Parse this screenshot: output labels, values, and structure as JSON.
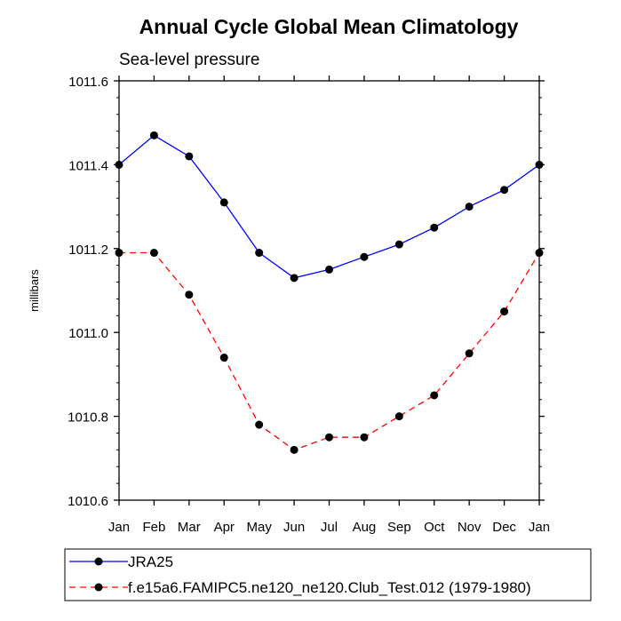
{
  "chart_data": {
    "type": "line",
    "title": "Annual Cycle Global Mean Climatology",
    "subtitle": "Sea-level pressure",
    "xlabel": "",
    "ylabel": "millibars",
    "categories": [
      "Jan",
      "Feb",
      "Mar",
      "Apr",
      "May",
      "Jun",
      "Jul",
      "Aug",
      "Sep",
      "Oct",
      "Nov",
      "Dec",
      "Jan"
    ],
    "ylim": [
      1010.6,
      1011.6
    ],
    "yticks": [
      1010.6,
      1010.8,
      1011.0,
      1011.2,
      1011.4,
      1011.6
    ],
    "ytick_labels": [
      "1010.6",
      "1010.8",
      "1011.0",
      "1011.2",
      "1011.4",
      "1011.6"
    ],
    "grid": false,
    "legend_position": "bottom",
    "series": [
      {
        "name": "JRA25",
        "color": "#0000ff",
        "dash": "solid",
        "values": [
          1011.4,
          1011.47,
          1011.42,
          1011.31,
          1011.19,
          1011.13,
          1011.15,
          1011.18,
          1011.21,
          1011.25,
          1011.3,
          1011.34,
          1011.4
        ]
      },
      {
        "name": "f.e15a6.FAMIPC5.ne120_ne120.Club_Test.012 (1979-1980)",
        "color": "#ff0000",
        "dash": "dashed",
        "values": [
          1011.19,
          1011.19,
          1011.09,
          1010.94,
          1010.78,
          1010.72,
          1010.75,
          1010.75,
          1010.8,
          1010.85,
          1010.95,
          1011.05,
          1011.19
        ]
      }
    ]
  }
}
